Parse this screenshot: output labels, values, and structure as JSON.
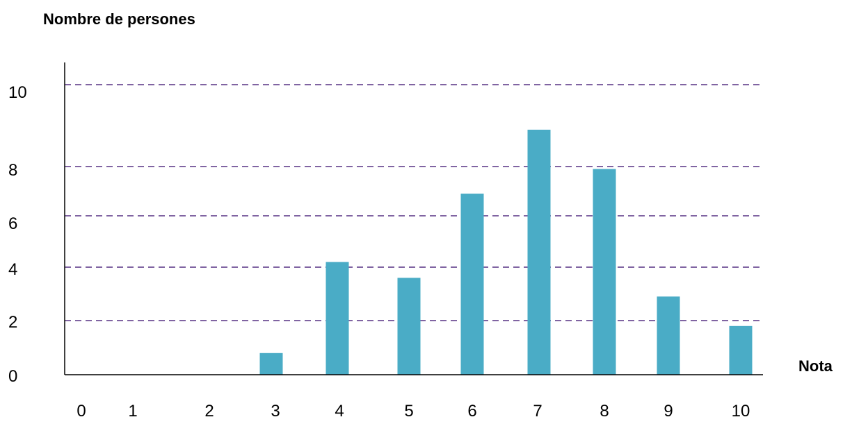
{
  "chart_data": {
    "type": "bar",
    "ylabel": "Nombre de persones",
    "xlabel": "Nota",
    "y_ticks": [
      "0",
      "2",
      "4",
      "6",
      "8",
      "10"
    ],
    "x_ticks": [
      "0",
      "1",
      "2",
      "3",
      "4",
      "5",
      "6",
      "7",
      "8",
      "9",
      "10"
    ],
    "categories": [
      "3",
      "4",
      "5",
      "6",
      "7",
      "8",
      "9",
      "10"
    ],
    "values": [
      0.8,
      4.2,
      3.6,
      6.9,
      8.9,
      7.9,
      2.9,
      1.8
    ],
    "ylim": [
      0,
      10.9
    ],
    "gridlines_y": [
      2,
      4,
      6,
      8,
      10
    ],
    "grid": true,
    "colors": {
      "bar": "#4aacc6",
      "grid": "#8064a2",
      "axis": "#000000"
    }
  }
}
